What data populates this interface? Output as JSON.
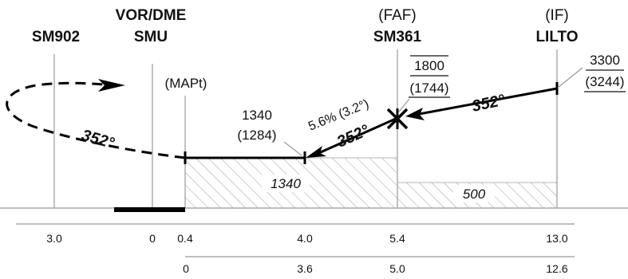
{
  "fixes": {
    "sm902": {
      "name": "SM902"
    },
    "smu": {
      "role": "VOR/DME",
      "name": "SMU"
    },
    "mapt": {
      "role": "(MAPt)"
    },
    "sm361": {
      "role": "(FAF)",
      "name": "SM361"
    },
    "lilto": {
      "role": "(IF)",
      "name": "LILTO"
    }
  },
  "altitudes": {
    "sdf": {
      "alt": "1340",
      "height": "(1284)"
    },
    "faf": {
      "alt": "1800",
      "height": "(1744)"
    },
    "if": {
      "alt": "3300",
      "height": "(3244)"
    }
  },
  "courses": {
    "missed": "352°",
    "final": "352°",
    "intermediate": "352°"
  },
  "gradient": "5.6% (3.2°)",
  "oca": {
    "final_segment": "1340",
    "intermediate_segment": "500"
  },
  "distance_scale_smu": [
    "3.0",
    "0",
    "0.4",
    "4.0",
    "5.4",
    "13.0"
  ],
  "distance_scale_thr": [
    "0",
    "3.6",
    "5.0",
    "12.6"
  ]
}
